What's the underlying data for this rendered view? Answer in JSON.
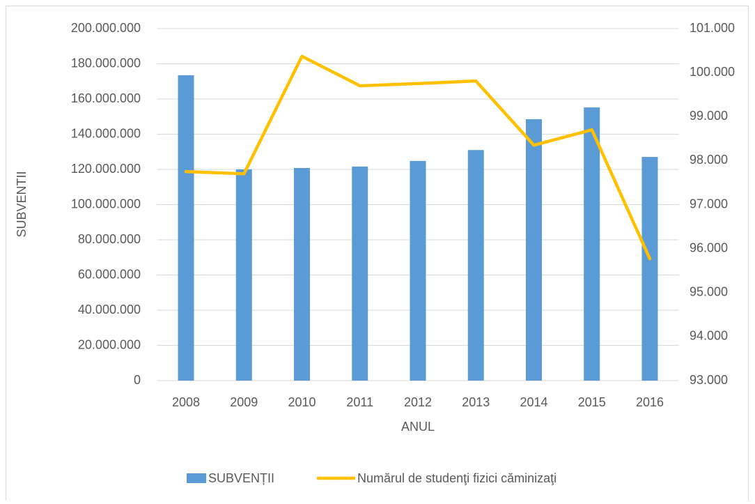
{
  "chart_data": {
    "type": "bar",
    "y_label": "SUBVENTII",
    "x_label": "ANUL",
    "categories": [
      "2008",
      "2009",
      "2010",
      "2011",
      "2012",
      "2013",
      "2014",
      "2015",
      "2016"
    ],
    "series": [
      {
        "name": "SUBVENȚII",
        "type": "bar",
        "color": "#5b9bd5",
        "values": [
          173500000,
          120000000,
          120800000,
          121600000,
          124800000,
          131000000,
          148500000,
          155200000,
          127100000
        ]
      },
      {
        "name": "Numărul de studenţi fizici căminizaţi",
        "type": "line",
        "axis": "y2",
        "color": "#ffc000",
        "values": [
          97750,
          97700,
          100370,
          99700,
          99750,
          99810,
          98350,
          98700,
          95770
        ]
      }
    ],
    "ylim": [
      0,
      200000000
    ],
    "yticks": [
      0,
      {
        "value": 20000000,
        "label": "20.000.000"
      },
      {
        "value": 40000000,
        "label": "40.000.000"
      },
      {
        "value": 60000000,
        "label": "60.000.000"
      },
      {
        "value": 80000000,
        "label": "80.000.000"
      },
      {
        "value": 100000000,
        "label": "100.000.000"
      },
      {
        "value": 120000000,
        "label": "120.000.000"
      },
      {
        "value": 140000000,
        "label": "140.000.000"
      },
      {
        "value": 160000000,
        "label": "160.000.000"
      },
      {
        "value": 180000000,
        "label": "180.000.000"
      },
      {
        "value": 200000000,
        "label": "200.000.000"
      }
    ],
    "y2lim": [
      93000,
      101000
    ],
    "y2ticks": [
      {
        "value": 93000,
        "label": "93.000"
      },
      {
        "value": 94000,
        "label": "94.000"
      },
      {
        "value": 95000,
        "label": "95.000"
      },
      {
        "value": 96000,
        "label": "96.000"
      },
      {
        "value": 97000,
        "label": "97.000"
      },
      {
        "value": 98000,
        "label": "98.000"
      },
      {
        "value": 99000,
        "label": "99.000"
      },
      {
        "value": 100000,
        "label": "100.000"
      },
      {
        "value": 101000,
        "label": "101.000"
      }
    ],
    "grid": true,
    "legend": "bottom"
  }
}
